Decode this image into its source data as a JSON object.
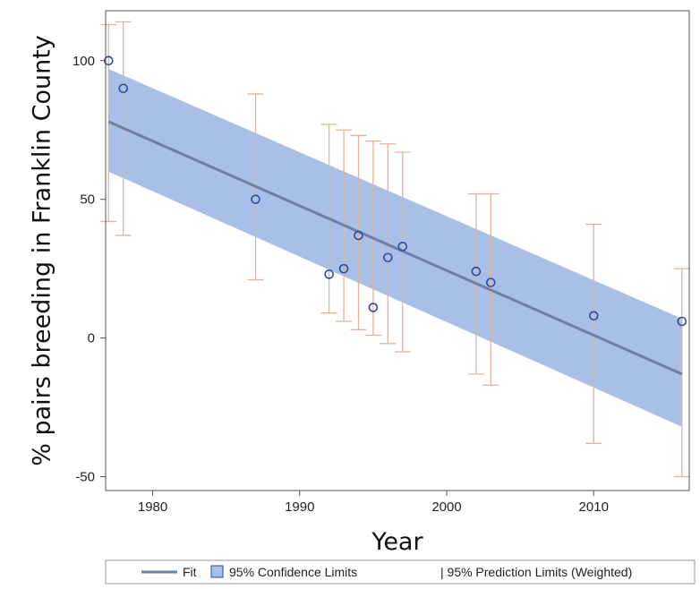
{
  "chart_data": {
    "type": "scatter",
    "title": "",
    "xlabel": "Year",
    "ylabel": "% pairs breeding in Franklin County",
    "xlim": [
      1976.8,
      2016.5
    ],
    "ylim": [
      -55,
      118
    ],
    "x_ticks": [
      "1980",
      "1990",
      "2000",
      "2010"
    ],
    "y_ticks": [
      "100",
      "50",
      "0",
      "-50"
    ],
    "grid": false,
    "legend_position": "bottom",
    "colors": {
      "fit": "#6e7fa3",
      "confidence_band": "#a9bfe6",
      "prediction_limits": "#e0b3a0",
      "points": "#2e4a9a"
    },
    "fit_line": {
      "x": [
        1977,
        2016
      ],
      "y": [
        78,
        -13
      ]
    },
    "confidence_band": {
      "x": [
        1977,
        2016
      ],
      "upper": [
        97,
        7
      ],
      "lower": [
        60,
        -32
      ]
    },
    "series": [
      {
        "x": [
          1977,
          1978,
          1987,
          1992,
          1993,
          1994,
          1995,
          1996,
          1997,
          2002,
          2003,
          2010,
          2016
        ],
        "y": [
          100,
          90,
          50,
          23,
          25,
          37,
          11,
          29,
          33,
          24,
          20,
          8,
          6
        ]
      }
    ],
    "prediction_limits": {
      "x": [
        1977,
        1978,
        1987,
        1992,
        1993,
        1994,
        1995,
        1996,
        1997,
        2002,
        2003,
        2010,
        2016
      ],
      "upper": [
        113,
        114,
        88,
        77,
        75,
        73,
        71,
        70,
        67,
        52,
        52,
        41,
        25
      ],
      "lower": [
        42,
        37,
        21,
        9,
        6,
        3,
        1,
        -2,
        -5,
        -13,
        -17,
        -38,
        -50
      ]
    },
    "legend": [
      {
        "key": "fit",
        "label": "Fit"
      },
      {
        "key": "confidence_band",
        "label": "95% Confidence Limits"
      },
      {
        "key": "prediction_limits",
        "label": "| 95% Prediction Limits (Weighted)"
      }
    ]
  }
}
